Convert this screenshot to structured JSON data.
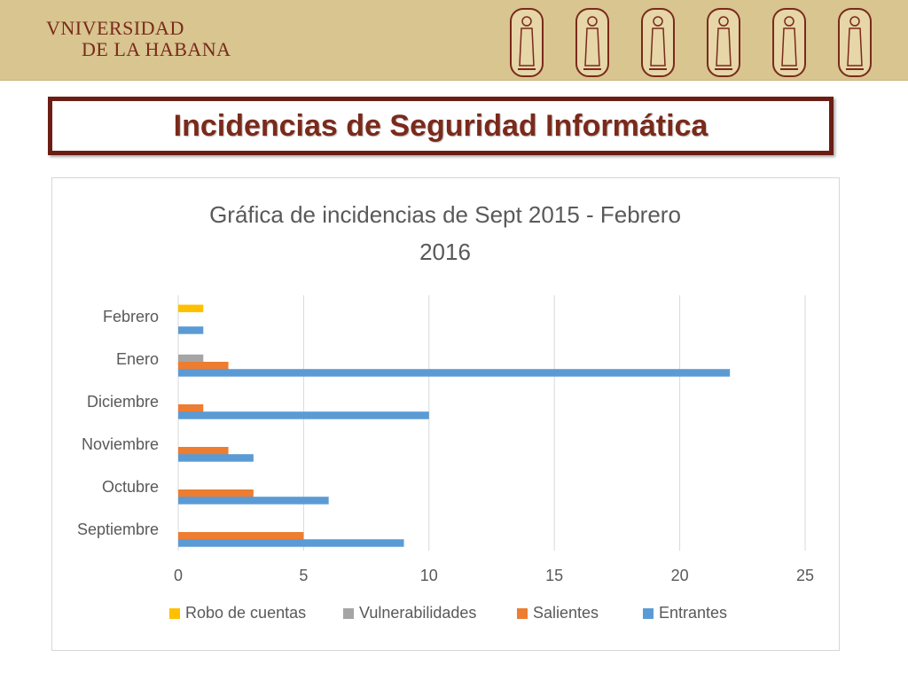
{
  "header": {
    "logo_line1": "VNIVERSIDAD",
    "logo_line2": "DE LA HABANA"
  },
  "slide_title": "Incidencias de Seguridad Informática",
  "chart_data": {
    "type": "bar",
    "orientation": "horizontal",
    "title_lines": [
      "Gráfica de incidencias de Sept 2015 - Febrero",
      "2016"
    ],
    "categories": [
      "Septiembre",
      "Octubre",
      "Noviembre",
      "Diciembre",
      "Enero",
      "Febrero"
    ],
    "series": [
      {
        "name": "Robo de cuentas",
        "color": "#ffc000",
        "values": [
          0,
          0,
          0,
          0,
          0,
          1
        ]
      },
      {
        "name": "Vulnerabilidades",
        "color": "#a5a5a5",
        "values": [
          0,
          0,
          0,
          0,
          1,
          0
        ]
      },
      {
        "name": "Salientes",
        "color": "#ed7d31",
        "values": [
          5,
          3,
          2,
          1,
          2,
          0
        ]
      },
      {
        "name": "Entrantes",
        "color": "#5b9bd5",
        "values": [
          9,
          6,
          3,
          10,
          22,
          1
        ]
      }
    ],
    "xlim": [
      0,
      25
    ],
    "xticks": [
      "0",
      "5",
      "10",
      "15",
      "20",
      "25"
    ],
    "grid": true,
    "legend_position": "bottom"
  }
}
